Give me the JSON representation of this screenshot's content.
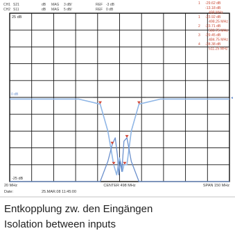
{
  "header": {
    "ch1": [
      "CH1",
      "S21",
      "dB",
      "MAG",
      "3 dB/",
      "REF",
      "-3 dB"
    ],
    "ch2": [
      "CH2",
      "S11",
      "dB",
      "MAG",
      "5 dB/",
      "REF",
      "0 dB"
    ]
  },
  "markers": [
    {
      "id": "1",
      "value": "-29.62 dB",
      "freq": ""
    },
    {
      "id": "",
      "value": "-13.18 dB",
      "freq": "498 MHz"
    },
    {
      "id": "1",
      "value": "-23.92 dB",
      "freq": "498.25 MHz"
    },
    {
      "id": "2",
      "value": "-23.71 dB",
      "freq": "500.75 MHz"
    },
    {
      "id": "3",
      "value": "-29.45 dB",
      "freq": "484.75 MHz"
    },
    {
      "id": "4",
      "value": "-28.38 dB",
      "freq": "511.25 MHz"
    }
  ],
  "plot": {
    "ref_top": "25 dB",
    "ref_bottom": "-25 dB",
    "left_marker": "0 dB",
    "start_label": "20 MHz",
    "center_label": "CENTER 498 MHz",
    "span_label": "SPAN 150 MHz",
    "date_label": "Date:",
    "date_value": "25.MAR.08  11:45:00"
  },
  "colors": {
    "grid": "#111111",
    "trace_blue": "#6a8fcc",
    "trace_light": "#8fb6e6",
    "marker_red": "#d24a3a",
    "text_red": "#c84832"
  },
  "chart_data": {
    "type": "line",
    "title": "",
    "xlabel": "",
    "ylabel": "",
    "xlim": [
      423,
      573
    ],
    "ylim": [
      -25,
      25
    ],
    "grid": true,
    "series": [
      {
        "name": "S21",
        "x": [
          423,
          470,
          484.75,
          490,
          494,
          496,
          498,
          500,
          501,
          503,
          506,
          511.25,
          526,
          573
        ],
        "values": [
          -0.5,
          -0.5,
          -2,
          -10,
          -20,
          -23,
          -18,
          -22,
          -20,
          -20,
          -10,
          -2,
          -0.5,
          -0.5
        ]
      },
      {
        "name": "S11",
        "x": [
          423,
          484.75,
          490,
          493,
          495,
          496.5,
          497.5,
          498.5,
          499.5,
          501,
          503,
          506,
          511.25,
          573
        ],
        "values": [
          -25,
          -25,
          -19,
          -14,
          -12,
          -17,
          -23,
          -19,
          -22,
          -13,
          -12,
          -19,
          -25,
          -25
        ]
      }
    ]
  },
  "caption": {
    "de": "Entkopplung zw. den Eingängen",
    "en": "Isolation between inputs"
  }
}
